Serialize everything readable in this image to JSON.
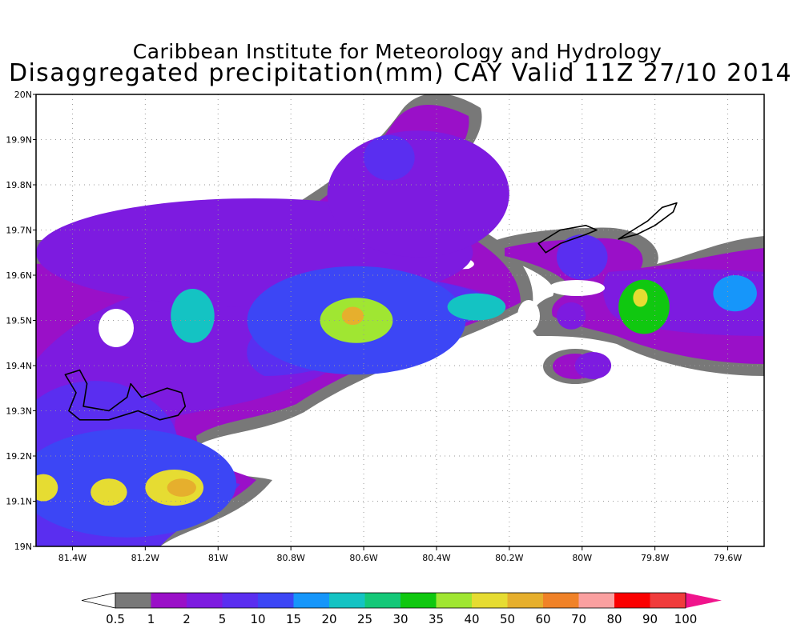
{
  "title_line1": "Caribbean Institute for Meteorology and Hydrology",
  "title_line2": "Disaggregated precipitation(mm) CAY Valid 11Z 27/10 2014",
  "map": {
    "lon_range": [
      -81.5,
      -79.5
    ],
    "lat_range": [
      19.0,
      20.0
    ],
    "grid": "dotted",
    "x_ticks": [
      {
        "value": -81.4,
        "label": "81.4W"
      },
      {
        "value": -81.2,
        "label": "81.2W"
      },
      {
        "value": -81.0,
        "label": "81W"
      },
      {
        "value": -80.8,
        "label": "80.8W"
      },
      {
        "value": -80.6,
        "label": "80.6W"
      },
      {
        "value": -80.4,
        "label": "80.4W"
      },
      {
        "value": -80.2,
        "label": "80.2W"
      },
      {
        "value": -80.0,
        "label": "80W"
      },
      {
        "value": -79.8,
        "label": "79.8W"
      },
      {
        "value": -79.6,
        "label": "79.6W"
      }
    ],
    "y_ticks": [
      {
        "value": 20.0,
        "label": "20N"
      },
      {
        "value": 19.9,
        "label": "19.9N"
      },
      {
        "value": 19.8,
        "label": "19.8N"
      },
      {
        "value": 19.7,
        "label": "19.7N"
      },
      {
        "value": 19.6,
        "label": "19.6N"
      },
      {
        "value": 19.5,
        "label": "19.5N"
      },
      {
        "value": 19.4,
        "label": "19.4N"
      },
      {
        "value": 19.3,
        "label": "19.3N"
      },
      {
        "value": 19.2,
        "label": "19.2N"
      },
      {
        "value": 19.1,
        "label": "19.1N"
      },
      {
        "value": 19.0,
        "label": "19N"
      }
    ],
    "islands": [
      {
        "points": [
          [
            -81.42,
            19.38
          ],
          [
            -81.38,
            19.39
          ],
          [
            -81.36,
            19.36
          ],
          [
            -81.37,
            19.31
          ],
          [
            -81.3,
            19.3
          ],
          [
            -81.25,
            19.33
          ],
          [
            -81.24,
            19.36
          ],
          [
            -81.21,
            19.33
          ],
          [
            -81.14,
            19.35
          ],
          [
            -81.1,
            19.34
          ],
          [
            -81.09,
            19.31
          ],
          [
            -81.11,
            19.29
          ],
          [
            -81.16,
            19.28
          ],
          [
            -81.22,
            19.3
          ],
          [
            -81.3,
            19.28
          ],
          [
            -81.38,
            19.28
          ],
          [
            -81.41,
            19.3
          ],
          [
            -81.39,
            19.34
          ],
          [
            -81.42,
            19.38
          ]
        ]
      },
      {
        "points": [
          [
            -80.12,
            19.67
          ],
          [
            -80.06,
            19.7
          ],
          [
            -79.99,
            19.71
          ],
          [
            -79.96,
            19.7
          ],
          [
            -79.99,
            19.69
          ],
          [
            -80.06,
            19.67
          ],
          [
            -80.1,
            19.65
          ],
          [
            -80.12,
            19.67
          ]
        ]
      },
      {
        "points": [
          [
            -79.9,
            19.68
          ],
          [
            -79.86,
            19.7
          ],
          [
            -79.82,
            19.72
          ],
          [
            -79.78,
            19.75
          ],
          [
            -79.74,
            19.76
          ],
          [
            -79.75,
            19.74
          ],
          [
            -79.8,
            19.71
          ],
          [
            -79.85,
            19.69
          ],
          [
            -79.9,
            19.68
          ]
        ]
      }
    ],
    "precip_cells": [
      {
        "lon": -80.9,
        "lat": 19.65,
        "r_lon": 0.6,
        "r_lat": 0.12,
        "value": 2
      },
      {
        "lon": -80.45,
        "lat": 19.78,
        "r_lon": 0.25,
        "r_lat": 0.14,
        "value": 2
      },
      {
        "lon": -80.53,
        "lat": 19.86,
        "r_lon": 0.07,
        "r_lat": 0.05,
        "value": 5
      },
      {
        "lon": -80.62,
        "lat": 19.5,
        "r_lon": 0.3,
        "r_lat": 0.12,
        "value": 10
      },
      {
        "lon": -80.62,
        "lat": 19.5,
        "r_lon": 0.1,
        "r_lat": 0.05,
        "value": 35
      },
      {
        "lon": -80.63,
        "lat": 19.51,
        "r_lon": 0.03,
        "r_lat": 0.02,
        "value": 50
      },
      {
        "lon": -81.07,
        "lat": 19.51,
        "r_lon": 0.06,
        "r_lat": 0.06,
        "value": 20
      },
      {
        "lon": -80.29,
        "lat": 19.53,
        "r_lon": 0.08,
        "r_lat": 0.03,
        "value": 20
      },
      {
        "lon": -81.25,
        "lat": 19.14,
        "r_lon": 0.3,
        "r_lat": 0.12,
        "value": 10
      },
      {
        "lon": -81.12,
        "lat": 19.13,
        "r_lon": 0.08,
        "r_lat": 0.04,
        "value": 40
      },
      {
        "lon": -81.1,
        "lat": 19.13,
        "r_lon": 0.04,
        "r_lat": 0.02,
        "value": 50
      },
      {
        "lon": -81.3,
        "lat": 19.12,
        "r_lon": 0.05,
        "r_lat": 0.03,
        "value": 40
      },
      {
        "lon": -81.48,
        "lat": 19.13,
        "r_lon": 0.04,
        "r_lat": 0.03,
        "value": 40
      },
      {
        "lon": -80.0,
        "lat": 19.64,
        "r_lon": 0.07,
        "r_lat": 0.05,
        "value": 5
      },
      {
        "lon": -80.03,
        "lat": 19.51,
        "r_lon": 0.04,
        "r_lat": 0.03,
        "value": 2
      },
      {
        "lon": -79.97,
        "lat": 19.4,
        "r_lon": 0.05,
        "r_lat": 0.03,
        "value": 2
      },
      {
        "lon": -79.83,
        "lat": 19.53,
        "r_lon": 0.07,
        "r_lat": 0.06,
        "value": 30
      },
      {
        "lon": -79.84,
        "lat": 19.55,
        "r_lon": 0.02,
        "r_lat": 0.02,
        "value": 40
      },
      {
        "lon": -79.58,
        "lat": 19.56,
        "r_lon": 0.06,
        "r_lat": 0.04,
        "value": 15
      }
    ]
  },
  "colorbar": {
    "colors": [
      "#ffffff",
      "#787878",
      "#9a10c8",
      "#7d1be0",
      "#5a2ef0",
      "#3c46f5",
      "#1696fa",
      "#14c3c3",
      "#14c878",
      "#10c810",
      "#a0e632",
      "#e6dc32",
      "#e6af2d",
      "#f08228",
      "#faa0a0",
      "#fa0000",
      "#f03c3c",
      "#f0148c"
    ],
    "labels": [
      "0.5",
      "1",
      "2",
      "5",
      "10",
      "15",
      "20",
      "25",
      "30",
      "35",
      "40",
      "50",
      "60",
      "70",
      "80",
      "90",
      "100"
    ]
  }
}
